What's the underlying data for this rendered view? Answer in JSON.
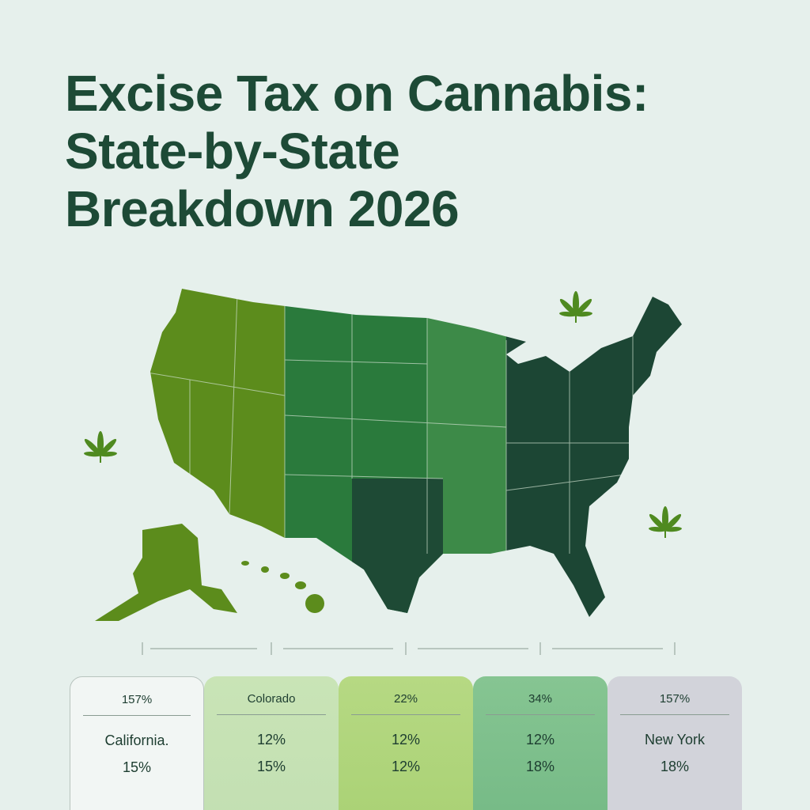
{
  "title_lines": [
    "Excise Tax on Cannabis:",
    "State-by-State",
    "Breakdown 2026"
  ],
  "cards": [
    {
      "header": "157%",
      "rows": [
        "California.",
        "15%"
      ]
    },
    {
      "header": "Colorado",
      "rows": [
        "12%",
        "15%"
      ]
    },
    {
      "header": "22%",
      "rows": [
        "12%",
        "12%"
      ]
    },
    {
      "header": "34%",
      "rows": [
        "12%",
        "18%"
      ]
    },
    {
      "header": "157%",
      "rows": [
        "New York",
        "18%"
      ]
    }
  ]
}
